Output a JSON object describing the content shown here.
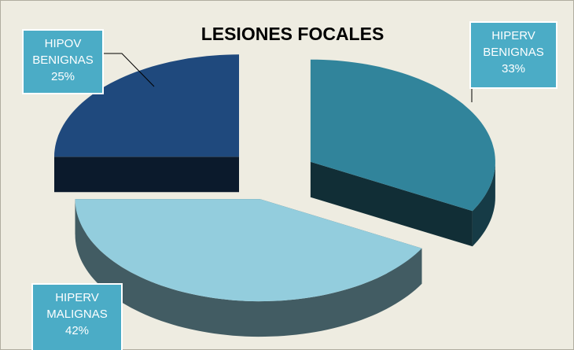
{
  "chart_data": {
    "type": "pie3d",
    "title": "LESIONES  FOCALES",
    "categories": [
      "HIPERV BENIGNAS",
      "HIPERV MALIGNAS",
      "HIPOV BENIGNAS"
    ],
    "values": [
      33,
      42,
      25
    ],
    "value_labels": [
      "33%",
      "42%",
      "25%"
    ],
    "colors": [
      "#31849b",
      "#93cddd",
      "#1f497d"
    ]
  }
}
